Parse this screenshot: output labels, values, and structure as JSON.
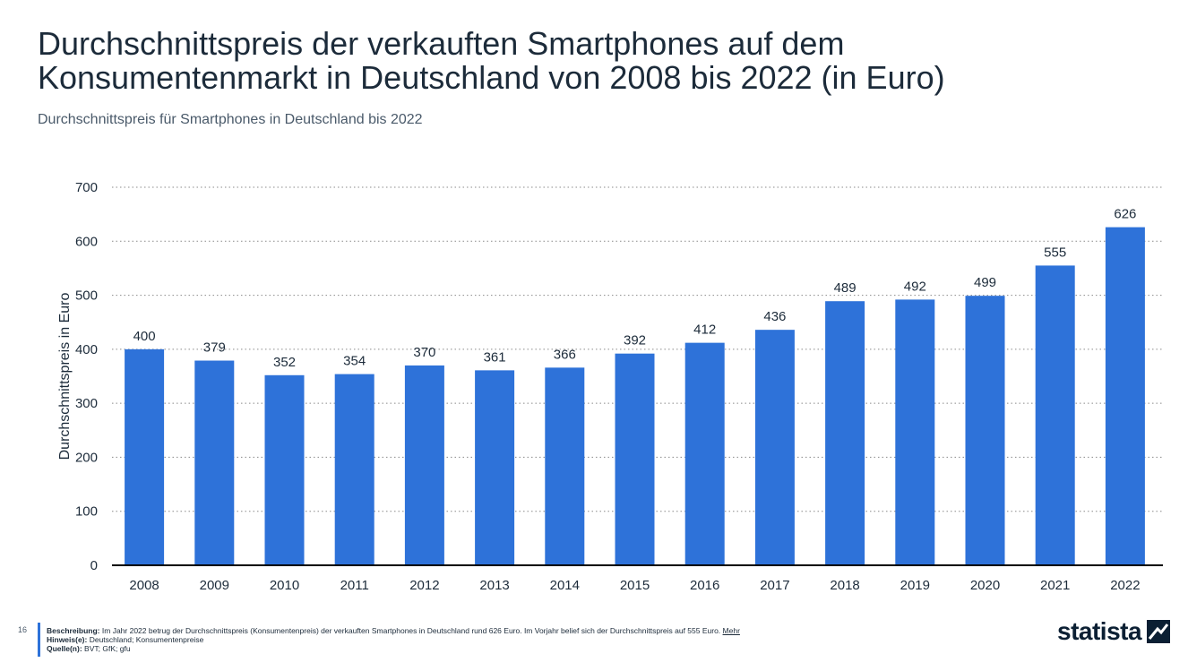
{
  "header": {
    "title": "Durchschnittspreis der verkauften Smartphones auf dem Konsumentenmarkt in Deutschland von 2008 bis 2022 (in Euro)",
    "subtitle": "Durchschnittspreis für Smartphones in Deutschland bis 2022"
  },
  "chart_data": {
    "type": "bar",
    "categories": [
      "2008",
      "2009",
      "2010",
      "2011",
      "2012",
      "2013",
      "2014",
      "2015",
      "2016",
      "2017",
      "2018",
      "2019",
      "2020",
      "2021",
      "2022"
    ],
    "values": [
      400,
      379,
      352,
      354,
      370,
      361,
      366,
      392,
      412,
      436,
      489,
      492,
      499,
      555,
      626
    ],
    "title": "Durchschnittspreis der verkauften Smartphones auf dem Konsumentenmarkt in Deutschland von 2008 bis 2022 (in Euro)",
    "xlabel": "",
    "ylabel": "Durchschnittspreis in Euro",
    "ylim": [
      0,
      700
    ],
    "yticks": [
      0,
      100,
      200,
      300,
      400,
      500,
      600,
      700
    ],
    "grid": true,
    "bar_color": "#2e72d9"
  },
  "footer": {
    "page_number": "16",
    "description_label": "Beschreibung:",
    "description_text": "Im Jahr 2022 betrug der Durchschnittspreis (Konsumentenpreis) der verkauften Smartphones in Deutschland rund 626 Euro. Im Vorjahr belief sich der Durchschnittspreis auf 555 Euro.",
    "more_link": "Mehr",
    "notes_label": "Hinweis(e):",
    "notes_text": "Deutschland; Konsumentenpreise",
    "source_label": "Quelle(n):",
    "source_text": "BVT; GfK; gfu",
    "logo_text": "statista"
  },
  "colors": {
    "accent": "#2e72d9",
    "title": "#1c2b3a",
    "logo": "#0b1f33"
  }
}
